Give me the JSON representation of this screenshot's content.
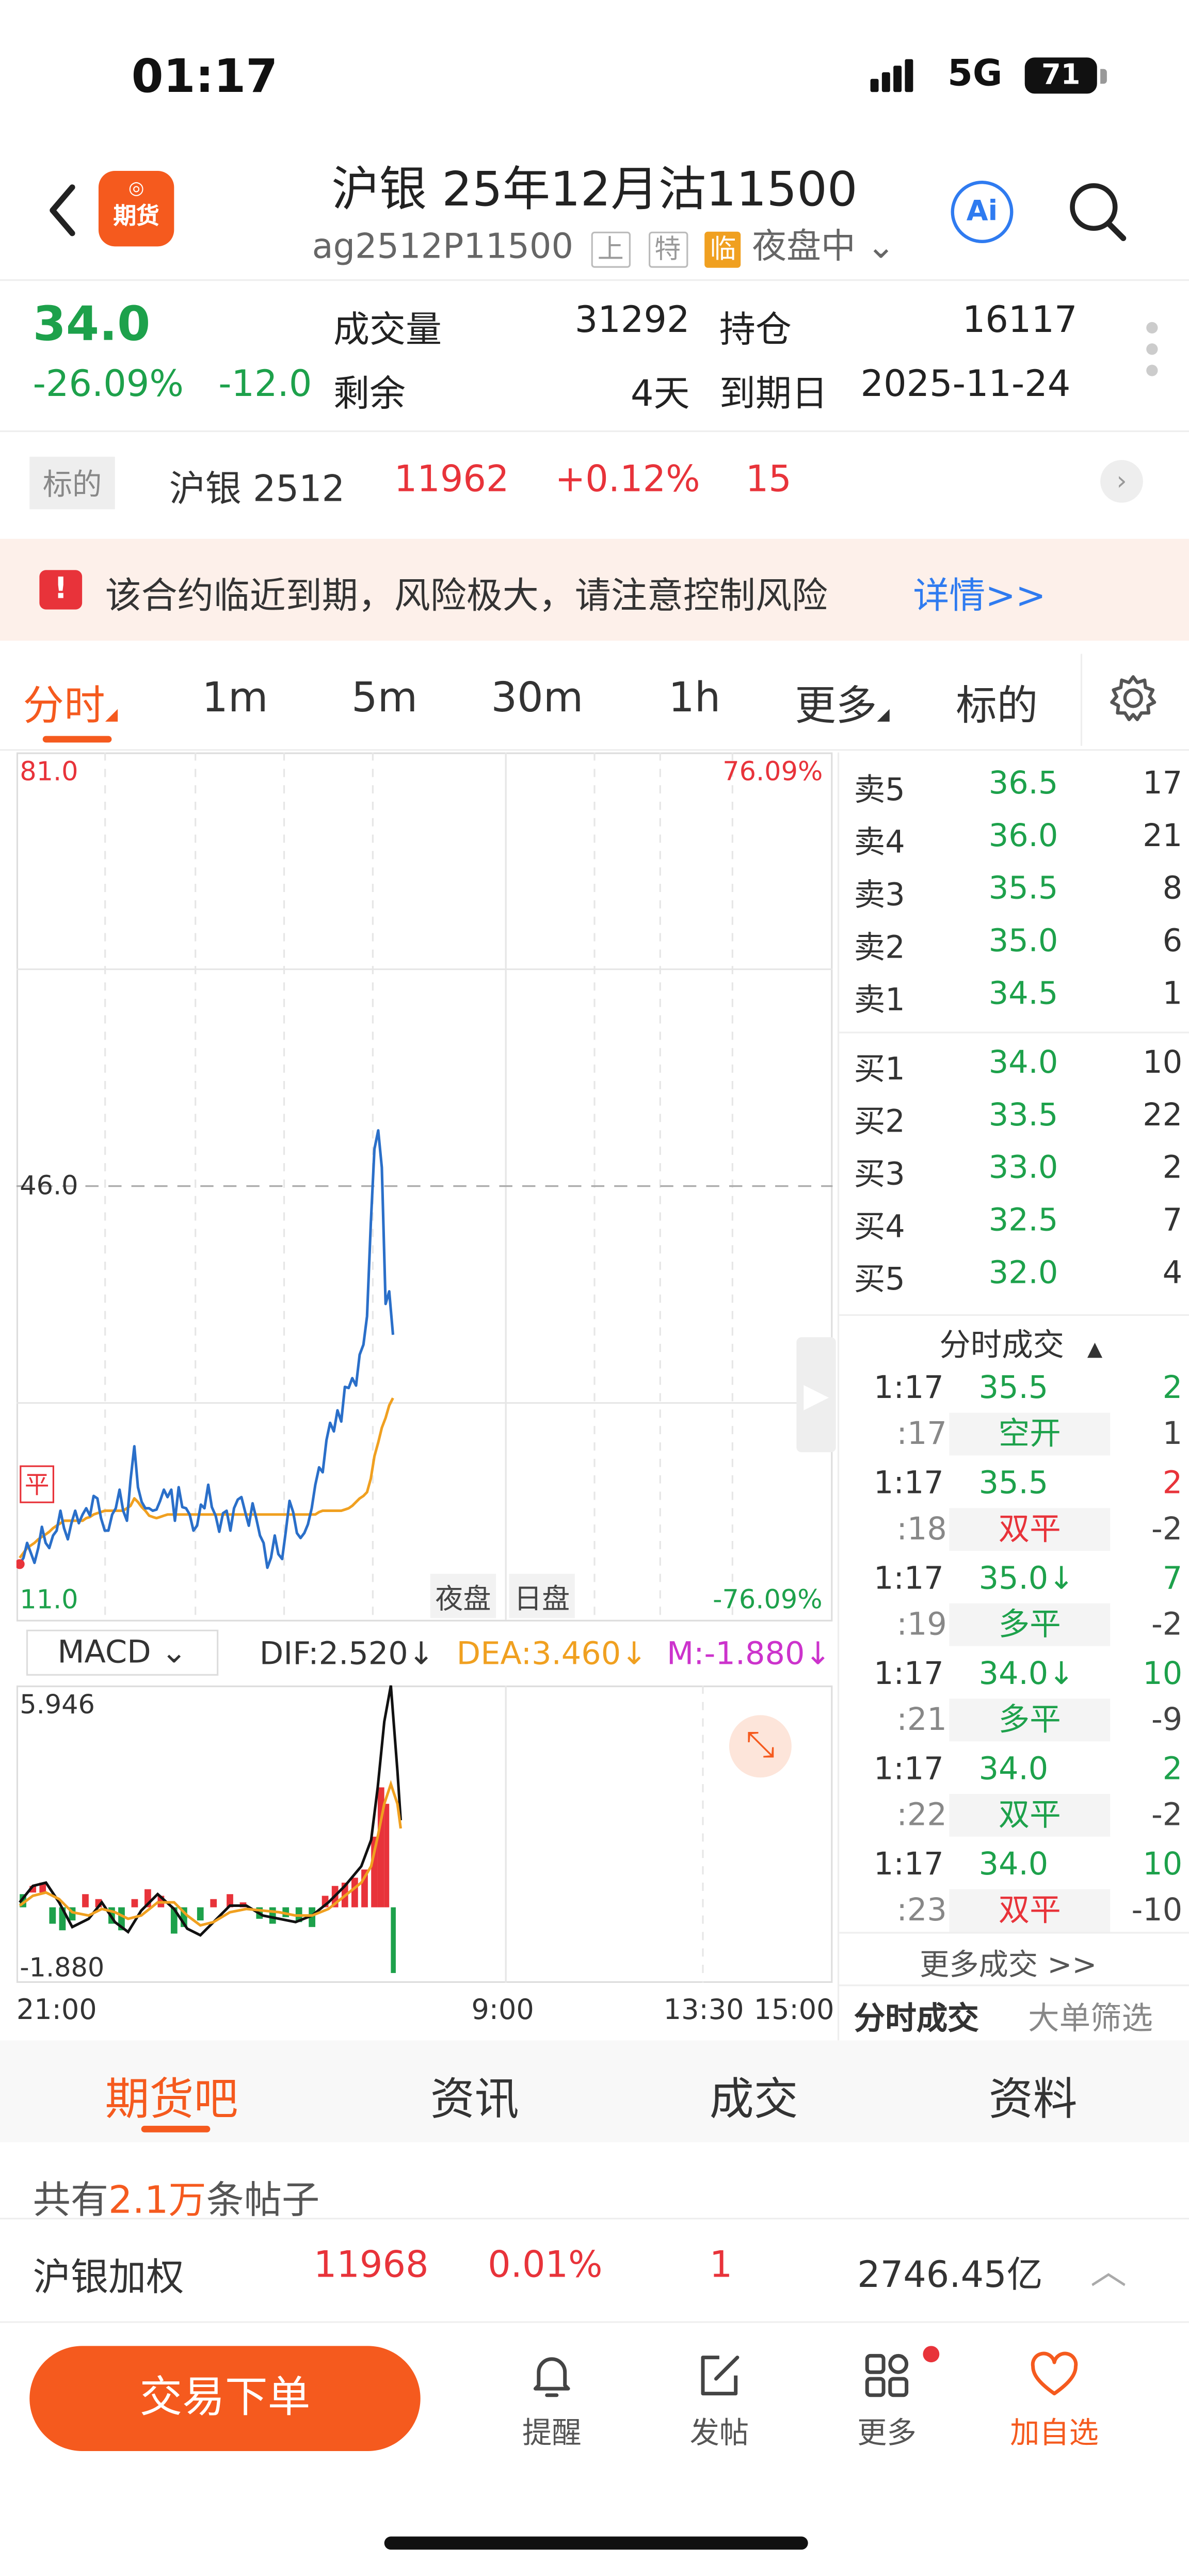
{
  "status": {
    "time": "01:17",
    "network": "5G",
    "battery": "71"
  },
  "header": {
    "logo_text": "期货",
    "title": "沪银 25年12月沽11500",
    "code": "ag2512P11500",
    "tag1": "上",
    "tag2": "特",
    "tag3": "临",
    "session": "夜盘中",
    "ai": "Ai"
  },
  "quote": {
    "price": "34.0",
    "pct": "-26.09%",
    "chg": "-12.0",
    "vol_label": "成交量",
    "vol": "31292",
    "oi_label": "持仓",
    "oi": "16117",
    "remain_label": "剩余",
    "remain": "4天",
    "expiry_label": "到期日",
    "expiry": "2025-11-24"
  },
  "underlying": {
    "label": "标的",
    "name": "沪银 2512",
    "price": "11962",
    "pct": "+0.12%",
    "chg": "15"
  },
  "notice": {
    "icon": "!",
    "text": "该合约临近到期，风险极大，请注意控制风险",
    "link": "详情>>"
  },
  "tabs": [
    "分时",
    "1m",
    "5m",
    "30m",
    "1h",
    "更多",
    "标的"
  ],
  "chart": {
    "y_top": "81.0",
    "y_mid": "46.0",
    "y_bot": "11.0",
    "pct_top": "76.09%",
    "pct_bot": "-76.09%",
    "ping": "平",
    "night": "夜盘",
    "day": "日盘",
    "macd_label": "MACD",
    "dif": "DIF:2.520↓",
    "dea": "DEA:3.460↓",
    "m": "M:-1.880↓",
    "macd_top": "5.946",
    "macd_bot": "-1.880",
    "x_labels": [
      "21:00",
      "9:00",
      "13:30",
      "15:00"
    ]
  },
  "chart_data": {
    "type": "line",
    "ylim": [
      11.0,
      81.0
    ],
    "ref_price": 46.0,
    "price": [
      15.5,
      16.0,
      17.2,
      16.4,
      15.6,
      16.8,
      18.5,
      17.2,
      16.8,
      17.8,
      18.2,
      19.8,
      18.4,
      17.5,
      18.8,
      19.8,
      18.8,
      19.5,
      20.0,
      19.4,
      21.0,
      20.8,
      19.2,
      18.2,
      18.2,
      19.5,
      20.0,
      21.5,
      19.8,
      19.0,
      22.3,
      25.0,
      21.7,
      20.5,
      20.0,
      20.0,
      19.8,
      19.9,
      20.6,
      21.5,
      20.9,
      21.5,
      19.0,
      21.7,
      20.1,
      20.0,
      19.5,
      18.2,
      18.6,
      20.3,
      20.0,
      21.9,
      20.1,
      19.4,
      18.1,
      19.6,
      19.8,
      18.2,
      20.0,
      20.7,
      20.9,
      19.7,
      18.6,
      20.4,
      19.2,
      17.8,
      17.2,
      15.2,
      16.0,
      17.8,
      16.3,
      15.9,
      18.1,
      20.6,
      19.7,
      18.0,
      17.6,
      18.0,
      18.7,
      20.0,
      21.9,
      23.3,
      22.9,
      25.5,
      26.9,
      26.2,
      27.9,
      27.0,
      29.8,
      29.7,
      30.5,
      29.9,
      32.4,
      33.2,
      35.5,
      43.0,
      49.0,
      50.5,
      47.5,
      36.5,
      37.5,
      34.0
    ],
    "avg": [
      16.0,
      16.4,
      16.8,
      17.0,
      17.2,
      17.5,
      17.7,
      17.9,
      18.1,
      18.4,
      18.6,
      18.8,
      19.0,
      19.0,
      19.0,
      19.0,
      19.0,
      19.0,
      19.2,
      19.3,
      19.5,
      19.6,
      19.7,
      19.8,
      19.8,
      19.8,
      19.8,
      19.8,
      19.8,
      20.0,
      20.2,
      20.8,
      20.5,
      20.1,
      19.8,
      19.4,
      19.3,
      19.2,
      19.3,
      19.4,
      19.5,
      19.5,
      19.5,
      19.5,
      19.5,
      19.5,
      19.5,
      19.5,
      19.5,
      19.5,
      19.5,
      19.5,
      19.5,
      19.5,
      19.5,
      19.5,
      19.5,
      19.5,
      19.5,
      19.5,
      19.5,
      19.5,
      19.5,
      19.5,
      19.5,
      19.5,
      19.5,
      19.5,
      19.5,
      19.5,
      19.5,
      19.5,
      19.5,
      19.5,
      19.5,
      19.5,
      19.5,
      19.5,
      19.5,
      19.5,
      19.5,
      19.7,
      19.8,
      19.8,
      19.8,
      19.8,
      19.8,
      19.8,
      19.9,
      20.0,
      20.2,
      20.5,
      20.8,
      21.0,
      21.3,
      22.4,
      24.2,
      25.3,
      26.5,
      27.3,
      28.3,
      28.9
    ]
  },
  "orderbook": {
    "asks": [
      {
        "label": "卖5",
        "price": "36.5",
        "vol": "17"
      },
      {
        "label": "卖4",
        "price": "36.0",
        "vol": "21"
      },
      {
        "label": "卖3",
        "price": "35.5",
        "vol": "8"
      },
      {
        "label": "卖2",
        "price": "35.0",
        "vol": "6"
      },
      {
        "label": "卖1",
        "price": "34.5",
        "vol": "1"
      }
    ],
    "bids": [
      {
        "label": "买1",
        "price": "34.0",
        "vol": "10"
      },
      {
        "label": "买2",
        "price": "33.5",
        "vol": "22"
      },
      {
        "label": "买3",
        "price": "33.0",
        "vol": "2"
      },
      {
        "label": "买4",
        "price": "32.5",
        "vol": "7"
      },
      {
        "label": "买5",
        "price": "32.0",
        "vol": "4"
      }
    ],
    "trades_title": "分时成交",
    "trades": [
      {
        "time": "1:17",
        "price": "35.5",
        "vol": "2",
        "sec": ":17",
        "type": "空开",
        "oi": "1",
        "pc": "green",
        "vc": "green",
        "tc": "green",
        "oc": "gray"
      },
      {
        "time": "1:17",
        "price": "35.5",
        "vol": "2",
        "sec": ":18",
        "type": "双平",
        "oi": "-2",
        "pc": "green",
        "vc": "red",
        "tc": "red",
        "oc": "gray"
      },
      {
        "time": "1:17",
        "price": "35.0↓",
        "vol": "7",
        "sec": ":19",
        "type": "多平",
        "oi": "-2",
        "pc": "green",
        "vc": "green",
        "tc": "green",
        "oc": "gray"
      },
      {
        "time": "1:17",
        "price": "34.0↓",
        "vol": "10",
        "sec": ":21",
        "type": "多平",
        "oi": "-9",
        "pc": "green",
        "vc": "green",
        "tc": "green",
        "oc": "gray"
      },
      {
        "time": "1:17",
        "price": "34.0",
        "vol": "2",
        "sec": ":22",
        "type": "双平",
        "oi": "-2",
        "pc": "green",
        "vc": "green",
        "tc": "green",
        "oc": "gray"
      },
      {
        "time": "1:17",
        "price": "34.0",
        "vol": "10",
        "sec": ":23",
        "type": "双平",
        "oi": "-10",
        "pc": "green",
        "vc": "green",
        "tc": "red",
        "oc": "gray"
      }
    ],
    "more": "更多成交 >>",
    "tab1": "分时成交",
    "tab2": "大单筛选"
  },
  "bottom_tabs": [
    "期货吧",
    "资讯",
    "成交",
    "资料"
  ],
  "posts": {
    "prefix": "共有",
    "count": "2.1万",
    "suffix": "条帖子"
  },
  "sticky": {
    "name": "沪银加权",
    "price": "11968",
    "pct": "0.01%",
    "chg": "1",
    "amount": "2746.45亿"
  },
  "nav": {
    "trade": "交易下单",
    "items": [
      "提醒",
      "发帖",
      "更多",
      "加自选"
    ]
  }
}
